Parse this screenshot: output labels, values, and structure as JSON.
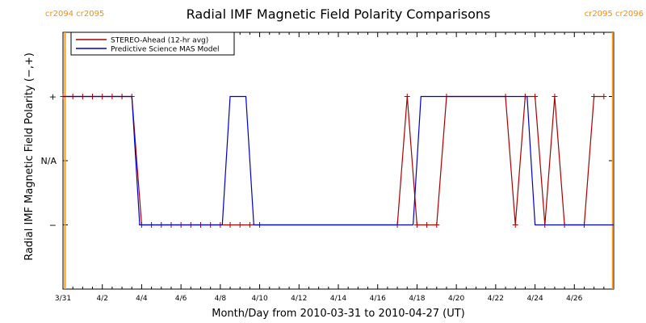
{
  "chart_data": {
    "type": "line",
    "title": "Radial IMF Magnetic Field Polarity Comparisons",
    "xlabel": "Month/Day from 2010-03-31 to 2010-04-27 (UT)",
    "ylabel": "Radial IMF Magnetic Field Polarity (−,+)",
    "x_tick_labels": [
      "3/31",
      "4/2",
      "4/4",
      "4/6",
      "4/8",
      "4/10",
      "4/12",
      "4/14",
      "4/16",
      "4/18",
      "4/20",
      "4/22",
      "4/24",
      "4/26"
    ],
    "x_range_days": [
      0,
      28
    ],
    "y_tick_labels": [
      "+",
      "N/A",
      "−"
    ],
    "y_tick_values": [
      1,
      0,
      -1
    ],
    "y_range": [
      -2,
      2
    ],
    "corner_labels": {
      "left": "cr2094 cr2095",
      "right": "cr2095 cr2096"
    },
    "carrington_rotation_lines_days": [
      0.1,
      27.95
    ],
    "legend_position": "top-left",
    "series": [
      {
        "name": "STEREO-Ahead (12-hr avg)",
        "color": "#aa0000",
        "markers": true,
        "points": [
          [
            0.0,
            1
          ],
          [
            0.5,
            1
          ],
          [
            1.0,
            1
          ],
          [
            1.5,
            1
          ],
          [
            2.0,
            1
          ],
          [
            2.5,
            1
          ],
          [
            3.0,
            1
          ],
          [
            3.5,
            1
          ],
          [
            4.0,
            -1
          ],
          [
            4.5,
            -1
          ],
          [
            5.0,
            -1
          ],
          [
            5.5,
            -1
          ],
          [
            6.0,
            -1
          ],
          [
            6.5,
            -1
          ],
          [
            7.0,
            -1
          ],
          [
            7.5,
            -1
          ],
          [
            8.0,
            -1
          ],
          [
            8.5,
            -1
          ],
          [
            9.0,
            -1
          ],
          [
            9.5,
            -1
          ],
          [
            10.0,
            -1
          ],
          [
            17.0,
            -1
          ],
          [
            17.5,
            1
          ],
          [
            18.0,
            -1
          ],
          [
            18.5,
            -1
          ],
          [
            19.0,
            -1
          ],
          [
            19.5,
            1
          ],
          [
            22.5,
            1
          ],
          [
            23.0,
            -1
          ],
          [
            23.5,
            1
          ],
          [
            24.0,
            1
          ],
          [
            24.5,
            -1
          ],
          [
            25.0,
            1
          ],
          [
            25.5,
            -1
          ],
          [
            26.5,
            -1
          ],
          [
            27.0,
            1
          ],
          [
            27.5,
            1
          ]
        ]
      },
      {
        "name": "Predictive Science MAS Model",
        "color": "#0000cc",
        "markers": false,
        "points": [
          [
            0.0,
            1
          ],
          [
            3.5,
            1
          ],
          [
            3.9,
            -1
          ],
          [
            8.1,
            -1
          ],
          [
            8.5,
            1
          ],
          [
            9.3,
            1
          ],
          [
            9.7,
            -1
          ],
          [
            17.8,
            -1
          ],
          [
            18.2,
            1
          ],
          [
            23.6,
            1
          ],
          [
            24.0,
            -1
          ],
          [
            28.0,
            -1
          ]
        ]
      }
    ]
  }
}
